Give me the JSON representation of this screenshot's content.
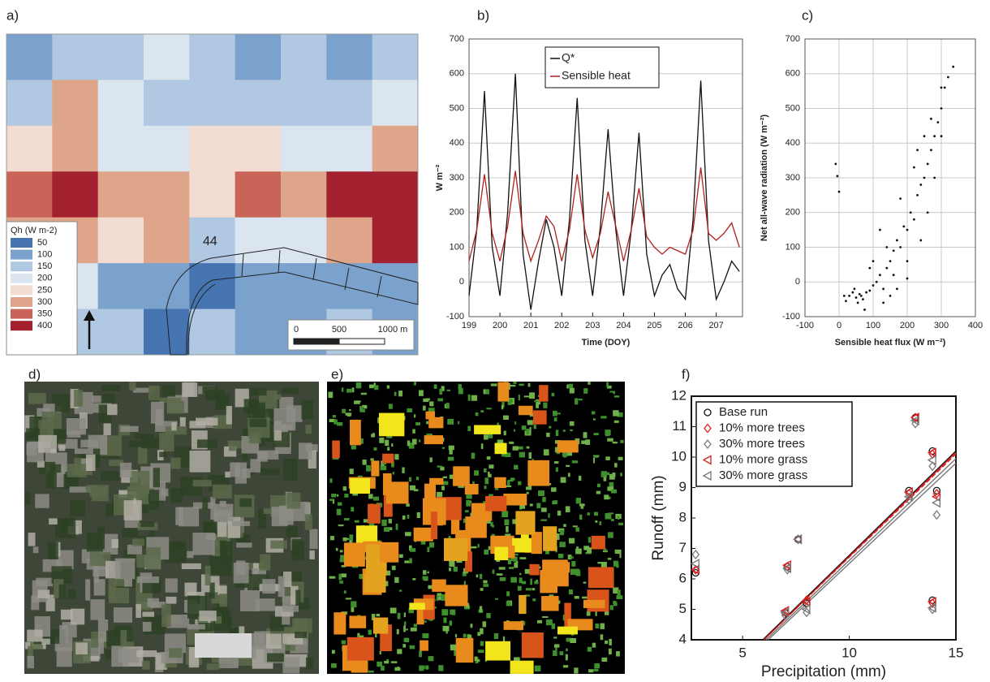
{
  "panel_labels": [
    "a)",
    "b)",
    "c)",
    "d)",
    "e)",
    "f)"
  ],
  "chart_data": [
    {
      "type": "heatmap",
      "values": [
        [
          100,
          150,
          150,
          200,
          150,
          100,
          150,
          100,
          150
        ],
        [
          150,
          300,
          200,
          150,
          150,
          150,
          150,
          150,
          200
        ],
        [
          250,
          300,
          200,
          200,
          250,
          250,
          200,
          200,
          300
        ],
        [
          350,
          400,
          300,
          300,
          250,
          350,
          300,
          400,
          400
        ],
        [
          300,
          300,
          250,
          300,
          150,
          200,
          200,
          300,
          400
        ],
        [
          200,
          200,
          100,
          100,
          50,
          100,
          100,
          100,
          100
        ],
        [
          150,
          150,
          150,
          50,
          150,
          100,
          100,
          150,
          100
        ]
      ],
      "legend": {
        "title": "Qh (W m-2)",
        "classes": [
          {
            "value": 50,
            "color": "#4574b0"
          },
          {
            "value": 100,
            "color": "#7ba2cc"
          },
          {
            "value": 150,
            "color": "#b0c8e1"
          },
          {
            "value": 200,
            "color": "#dbe5ef"
          },
          {
            "value": 250,
            "color": "#f2dcd2"
          },
          {
            "value": 300,
            "color": "#dea58a"
          },
          {
            "value": 350,
            "color": "#c86458"
          },
          {
            "value": 400,
            "color": "#a3202f"
          }
        ]
      },
      "annotation": "44",
      "scale_bar": [
        "0",
        "500",
        "1000 m"
      ]
    },
    {
      "type": "line",
      "ylabel": "W m⁻²",
      "xlabel": "Time (DOY)",
      "x": [
        199,
        199.25,
        199.5,
        199.75,
        200,
        200.25,
        200.5,
        200.75,
        201,
        201.25,
        201.5,
        201.75,
        202,
        202.25,
        202.5,
        202.75,
        203,
        203.25,
        203.5,
        203.75,
        204,
        204.25,
        204.5,
        204.75,
        205,
        205.25,
        205.5,
        205.75,
        206,
        206.25,
        206.5,
        206.75,
        207,
        207.25,
        207.5,
        207.75
      ],
      "xlim": [
        199,
        207.85
      ],
      "xticks": [
        199,
        200,
        201,
        202,
        203,
        204,
        205,
        206,
        207
      ],
      "ylim": [
        -100,
        700
      ],
      "yticks": [
        -100,
        0,
        100,
        200,
        300,
        400,
        500,
        600,
        700
      ],
      "grid": true,
      "series": [
        {
          "name": "Q*",
          "color": "#111111",
          "values": [
            -40,
            150,
            550,
            100,
            -40,
            200,
            600,
            80,
            -80,
            60,
            180,
            100,
            -40,
            180,
            530,
            120,
            -40,
            160,
            440,
            150,
            -40,
            150,
            430,
            80,
            -40,
            20,
            50,
            -20,
            -50,
            180,
            580,
            120,
            -50,
            0,
            60,
            30
          ]
        },
        {
          "name": "Sensible heat",
          "color": "#b0201c",
          "values": [
            60,
            150,
            310,
            140,
            60,
            160,
            320,
            140,
            60,
            120,
            190,
            160,
            60,
            150,
            310,
            150,
            70,
            140,
            260,
            160,
            60,
            150,
            270,
            130,
            100,
            80,
            100,
            90,
            80,
            150,
            330,
            140,
            120,
            140,
            170,
            100
          ]
        }
      ]
    },
    {
      "type": "scatter",
      "xlabel": "Sensible heat flux (W m⁻²)",
      "ylabel": "Net all-wave radiation (W m⁻²)",
      "xlim": [
        -100,
        400
      ],
      "xticks": [
        -100,
        0,
        100,
        200,
        300,
        400
      ],
      "ylim": [
        -100,
        700
      ],
      "yticks": [
        -100,
        0,
        100,
        200,
        300,
        400,
        500,
        600,
        700
      ],
      "grid": true,
      "color": "#111111",
      "x": [
        30,
        40,
        50,
        60,
        70,
        80,
        45,
        55,
        65,
        90,
        100,
        110,
        120,
        130,
        140,
        150,
        160,
        170,
        180,
        190,
        200,
        210,
        220,
        230,
        240,
        250,
        260,
        270,
        280,
        290,
        300,
        310,
        320,
        335,
        160,
        200,
        180,
        220,
        250,
        120,
        140,
        260,
        280,
        300,
        200,
        240,
        100,
        90,
        300,
        270,
        230,
        -10,
        -5,
        0,
        15,
        20,
        170,
        150,
        130,
        75
      ],
      "values": [
        -40,
        -30,
        -45,
        -35,
        -50,
        -30,
        -20,
        -60,
        -40,
        -25,
        -10,
        0,
        20,
        -20,
        40,
        60,
        90,
        120,
        100,
        160,
        150,
        200,
        180,
        250,
        280,
        300,
        340,
        380,
        420,
        460,
        500,
        560,
        590,
        620,
        20,
        60,
        240,
        330,
        420,
        150,
        100,
        200,
        300,
        420,
        10,
        120,
        60,
        40,
        560,
        470,
        380,
        340,
        305,
        260,
        -40,
        -55,
        -20,
        -40,
        -60,
        -80
      ]
    },
    {
      "type": "scatter",
      "xlabel": "Precipitation (mm)",
      "ylabel": "Runoff (mm)",
      "xlim": [
        2.6,
        15
      ],
      "xticks": [
        5,
        10,
        15
      ],
      "ylim": [
        4,
        12
      ],
      "yticks": [
        4,
        5,
        6,
        7,
        8,
        9,
        10,
        11,
        12
      ],
      "x": [
        2.8,
        7.0,
        7.1,
        7.6,
        8.0,
        12.8,
        13.1,
        13.9,
        13.9,
        14.1
      ],
      "series": [
        {
          "name": "Base run",
          "color": "#111111",
          "marker": "circle",
          "values": [
            6.2,
            4.9,
            6.4,
            7.3,
            5.2,
            8.9,
            11.3,
            10.2,
            5.3,
            8.9
          ],
          "fit_x": [
            5.95,
            15
          ],
          "fit_y": [
            4,
            10.2
          ],
          "dash": false
        },
        {
          "name": "10% more trees",
          "color": "#d62020",
          "marker": "diamond",
          "values": [
            6.3,
            4.9,
            6.4,
            7.3,
            5.3,
            8.8,
            11.3,
            10.1,
            5.2,
            8.8
          ],
          "fit_x": [
            6.0,
            15
          ],
          "fit_y": [
            4,
            10.1
          ],
          "dash": true
        },
        {
          "name": "30% more trees",
          "color": "#777777",
          "marker": "diamond",
          "values": [
            6.8,
            4.8,
            6.3,
            7.3,
            4.9,
            8.6,
            11.1,
            9.7,
            5.0,
            8.1
          ],
          "fit_x": [
            6.2,
            15
          ],
          "fit_y": [
            4,
            9.8
          ],
          "dash": false
        },
        {
          "name": "10% more grass",
          "color": "#d62020",
          "marker": "triangle-left",
          "values": [
            6.3,
            4.95,
            6.45,
            7.3,
            5.25,
            8.85,
            11.3,
            10.15,
            5.25,
            8.7
          ],
          "fit_x": [
            6.0,
            15
          ],
          "fit_y": [
            4,
            10.15
          ],
          "dash": false
        },
        {
          "name": "30% more grass",
          "color": "#777777",
          "marker": "triangle-left",
          "values": [
            6.5,
            4.9,
            6.35,
            7.3,
            5.0,
            8.7,
            11.2,
            9.9,
            5.05,
            8.5
          ],
          "fit_x": [
            6.1,
            15
          ],
          "fit_y": [
            4,
            9.95
          ],
          "dash": false
        }
      ]
    }
  ]
}
